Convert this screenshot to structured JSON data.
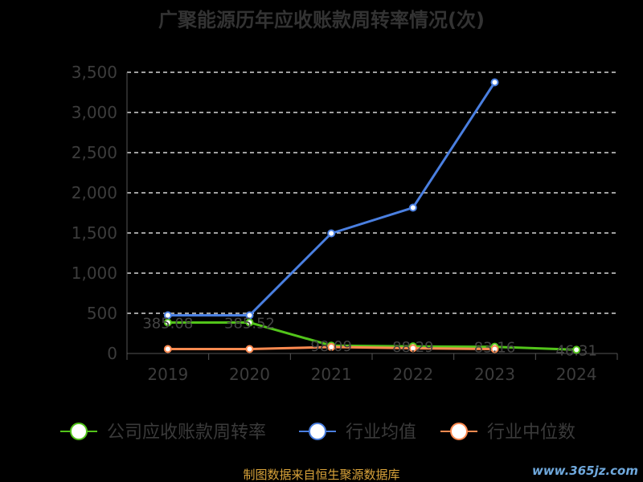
{
  "chart_data": {
    "type": "line",
    "title": "广聚能源历年应收账款周转率情况(次)",
    "categories": [
      "2019",
      "2020",
      "2021",
      "2022",
      "2023",
      "2024"
    ],
    "y_ticks": [
      "0",
      "500",
      "1,000",
      "1,500",
      "2,000",
      "2,500",
      "3,000",
      "3,500"
    ],
    "ylim": [
      0,
      3500
    ],
    "grid": true,
    "legend_position": "bottom",
    "series": [
      {
        "name": "公司应收账款周转率",
        "color": "#52c41a",
        "values": [
          385.08,
          385.52,
          98.09,
          88.29,
          83.16,
          46.31
        ],
        "labels": [
          "385.08",
          "385.52",
          "98.09",
          "88.29",
          "83.16",
          "46.31"
        ]
      },
      {
        "name": "行业均值",
        "color": "#4a7fe0",
        "values": [
          475,
          475,
          1495,
          1815,
          3375,
          null
        ]
      },
      {
        "name": "行业中位数",
        "color": "#ff8a50",
        "values": [
          55,
          55,
          80,
          65,
          55,
          null
        ]
      }
    ]
  },
  "source_text": "制图数据来自恒生聚源数据库",
  "watermark": "www.365jz.com",
  "colors": {
    "background": "#000000",
    "grid": "#ffffff",
    "axis": "#555555"
  }
}
